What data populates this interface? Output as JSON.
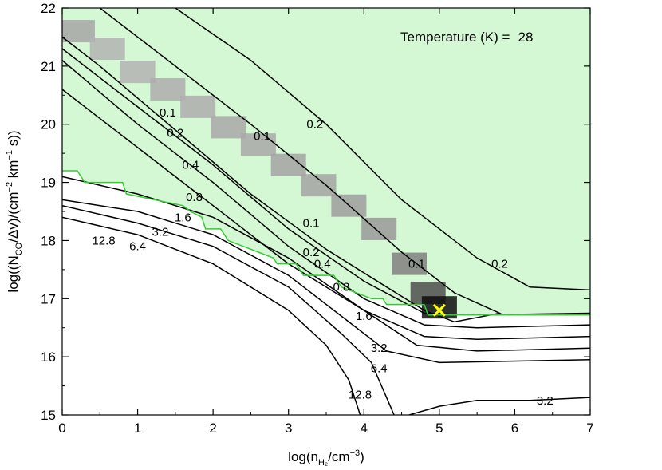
{
  "chart_data": {
    "type": "contour",
    "title": "",
    "annotation": {
      "label": "Temperature (K) =",
      "value": "28"
    },
    "xlabel": {
      "main": "log(n",
      "sub": "H₂",
      "tail": "/cm",
      "sup": "−3",
      "end": ")"
    },
    "ylabel": {
      "main": "log((N",
      "sub": "CO",
      "mid": "/Δv)/(cm",
      "sup1": "−2",
      "mid2": " km",
      "sup2": "−1",
      "end": " s))"
    },
    "xlim": [
      0,
      7
    ],
    "ylim": [
      15,
      22
    ],
    "xticks": [
      "0",
      "1",
      "2",
      "3",
      "4",
      "5",
      "6",
      "7"
    ],
    "yticks": [
      "15",
      "16",
      "17",
      "18",
      "19",
      "20",
      "21",
      "22"
    ],
    "best_fit_marker": {
      "x": 5.0,
      "y": 16.8,
      "symbol": "×",
      "color": "#ffff00"
    },
    "colors": {
      "allowed_region": "#d4f7d4",
      "boundary": "#33cc33",
      "contour": "#000000",
      "marker": "#ffff00"
    },
    "allowed_region_boundary": [
      [
        0,
        19.2
      ],
      [
        0.2,
        19.2
      ],
      [
        0.3,
        19.0
      ],
      [
        0.8,
        19.0
      ],
      [
        0.85,
        18.8
      ],
      [
        1.6,
        18.6
      ],
      [
        1.7,
        18.5
      ],
      [
        1.85,
        18.4
      ],
      [
        1.9,
        18.2
      ],
      [
        2.1,
        18.2
      ],
      [
        2.2,
        18.0
      ],
      [
        2.6,
        17.8
      ],
      [
        2.8,
        17.7
      ],
      [
        2.85,
        17.6
      ],
      [
        3.1,
        17.6
      ],
      [
        3.2,
        17.4
      ],
      [
        3.6,
        17.4
      ],
      [
        3.7,
        17.2
      ],
      [
        3.9,
        17.1
      ],
      [
        4.1,
        17.0
      ],
      [
        4.25,
        17.0
      ],
      [
        4.3,
        16.9
      ],
      [
        4.8,
        16.9
      ],
      [
        4.85,
        16.72
      ],
      [
        7,
        16.72
      ]
    ],
    "chi2_map": [
      {
        "x": 0.2,
        "y": 21.6,
        "shade": 0.35
      },
      {
        "x": 0.6,
        "y": 21.3,
        "shade": 0.3
      },
      {
        "x": 1.0,
        "y": 20.9,
        "shade": 0.3
      },
      {
        "x": 1.4,
        "y": 20.6,
        "shade": 0.32
      },
      {
        "x": 1.8,
        "y": 20.3,
        "shade": 0.32
      },
      {
        "x": 2.2,
        "y": 19.95,
        "shade": 0.34
      },
      {
        "x": 2.6,
        "y": 19.65,
        "shade": 0.34
      },
      {
        "x": 3.0,
        "y": 19.3,
        "shade": 0.36
      },
      {
        "x": 3.4,
        "y": 18.95,
        "shade": 0.36
      },
      {
        "x": 3.8,
        "y": 18.6,
        "shade": 0.38
      },
      {
        "x": 4.2,
        "y": 18.2,
        "shade": 0.4
      },
      {
        "x": 4.6,
        "y": 17.6,
        "shade": 0.5
      },
      {
        "x": 4.85,
        "y": 17.1,
        "shade": 0.7
      },
      {
        "x": 5.0,
        "y": 16.85,
        "shade": 0.95
      }
    ],
    "contours": [
      {
        "level": "0.2",
        "points": [
          [
            1.5,
            22
          ],
          [
            2.5,
            21.1
          ],
          [
            3.5,
            20.0
          ],
          [
            4.5,
            18.7
          ],
          [
            5.5,
            17.7
          ],
          [
            6.2,
            17.2
          ],
          [
            7,
            17.15
          ]
        ],
        "labels": [
          {
            "text": "0.2",
            "x": 3.35,
            "y": 20.0
          },
          {
            "text": "0.2",
            "x": 5.8,
            "y": 17.6
          }
        ]
      },
      {
        "level": "0.1",
        "points": [
          [
            0.5,
            22
          ],
          [
            1.5,
            21.0
          ],
          [
            2.5,
            20.0
          ],
          [
            3.5,
            18.95
          ],
          [
            4.5,
            17.8
          ],
          [
            5.2,
            17.1
          ],
          [
            5.8,
            16.75
          ],
          [
            5.2,
            16.6
          ],
          [
            4.8,
            16.8
          ],
          [
            4.3,
            17.2
          ],
          [
            3.5,
            17.85
          ],
          [
            2.5,
            18.8
          ],
          [
            1.5,
            19.9
          ],
          [
            0.5,
            21.0
          ],
          [
            0,
            21.5
          ]
        ],
        "labels": [
          {
            "text": "0.1",
            "x": 2.65,
            "y": 19.8
          },
          {
            "text": "0.1",
            "x": 1.4,
            "y": 20.2
          },
          {
            "text": "0.1",
            "x": 3.3,
            "y": 18.3
          },
          {
            "text": "0.1",
            "x": 4.7,
            "y": 17.6
          }
        ]
      },
      {
        "level": "0.2",
        "points": [
          [
            0,
            21.3
          ],
          [
            1,
            20.3
          ],
          [
            2,
            19.3
          ],
          [
            3,
            18.2
          ],
          [
            4,
            17.3
          ],
          [
            4.8,
            16.75
          ],
          [
            5.5,
            16.72
          ],
          [
            7,
            16.75
          ]
        ],
        "labels": [
          {
            "text": "0.2",
            "x": 1.5,
            "y": 19.85
          },
          {
            "text": "0.2",
            "x": 3.3,
            "y": 17.8
          }
        ]
      },
      {
        "level": "0.4",
        "points": [
          [
            0,
            21.1
          ],
          [
            1,
            20.0
          ],
          [
            2,
            19.0
          ],
          [
            3,
            17.9
          ],
          [
            4,
            17.0
          ],
          [
            4.8,
            16.55
          ],
          [
            5.5,
            16.5
          ],
          [
            7,
            16.55
          ]
        ],
        "labels": [
          {
            "text": "0.4",
            "x": 1.7,
            "y": 19.3
          },
          {
            "text": "0.4",
            "x": 3.45,
            "y": 17.6
          }
        ]
      },
      {
        "level": "0.8",
        "points": [
          [
            0,
            20.6
          ],
          [
            1,
            19.6
          ],
          [
            2,
            18.6
          ],
          [
            3,
            17.6
          ],
          [
            4,
            16.8
          ],
          [
            4.8,
            16.35
          ],
          [
            5.5,
            16.3
          ],
          [
            7,
            16.35
          ]
        ],
        "labels": [
          {
            "text": "0.8",
            "x": 1.75,
            "y": 18.75
          },
          {
            "text": "0.8",
            "x": 3.7,
            "y": 17.2
          }
        ]
      },
      {
        "level": "1.6",
        "points": [
          [
            0,
            19.1
          ],
          [
            1,
            18.8
          ],
          [
            2,
            18.4
          ],
          [
            3,
            17.7
          ],
          [
            4,
            16.8
          ],
          [
            4.7,
            16.2
          ],
          [
            5.5,
            16.1
          ],
          [
            7,
            16.15
          ]
        ],
        "labels": [
          {
            "text": "1.6",
            "x": 1.6,
            "y": 18.4
          },
          {
            "text": "1.6",
            "x": 4.0,
            "y": 16.7
          }
        ]
      },
      {
        "level": "3.2",
        "points": [
          [
            0,
            18.7
          ],
          [
            1,
            18.5
          ],
          [
            2,
            18.1
          ],
          [
            3,
            17.4
          ],
          [
            3.8,
            16.6
          ],
          [
            4.3,
            16.1
          ],
          [
            5,
            15.9
          ],
          [
            7,
            15.95
          ]
        ],
        "labels": [
          {
            "text": "3.2",
            "x": 1.3,
            "y": 18.15
          },
          {
            "text": "3.2",
            "x": 4.2,
            "y": 16.15
          }
        ]
      },
      {
        "level": "6.4",
        "points": [
          [
            0,
            18.6
          ],
          [
            1,
            18.3
          ],
          [
            2,
            17.9
          ],
          [
            3,
            17.2
          ],
          [
            3.7,
            16.4
          ],
          [
            4.1,
            15.9
          ],
          [
            4.4,
            15.0
          ]
        ],
        "labels": [
          {
            "text": "6.4",
            "x": 1.0,
            "y": 17.9
          },
          {
            "text": "6.4",
            "x": 4.2,
            "y": 15.8
          }
        ]
      },
      {
        "level": "12.8",
        "points": [
          [
            0,
            18.4
          ],
          [
            1,
            18.1
          ],
          [
            2,
            17.6
          ],
          [
            3,
            16.8
          ],
          [
            3.5,
            16.2
          ],
          [
            3.8,
            15.6
          ],
          [
            3.95,
            15.0
          ]
        ],
        "labels": [
          {
            "text": "12.8",
            "x": 0.55,
            "y": 18.0
          },
          {
            "text": "12.8",
            "x": 3.95,
            "y": 15.35
          }
        ]
      },
      {
        "level": "3.2",
        "points": [
          [
            4.6,
            15.0
          ],
          [
            5.0,
            15.15
          ],
          [
            5.5,
            15.25
          ],
          [
            6.2,
            15.25
          ],
          [
            7,
            15.3
          ]
        ],
        "labels": [
          {
            "text": "3.2",
            "x": 6.4,
            "y": 15.25
          }
        ]
      }
    ]
  }
}
